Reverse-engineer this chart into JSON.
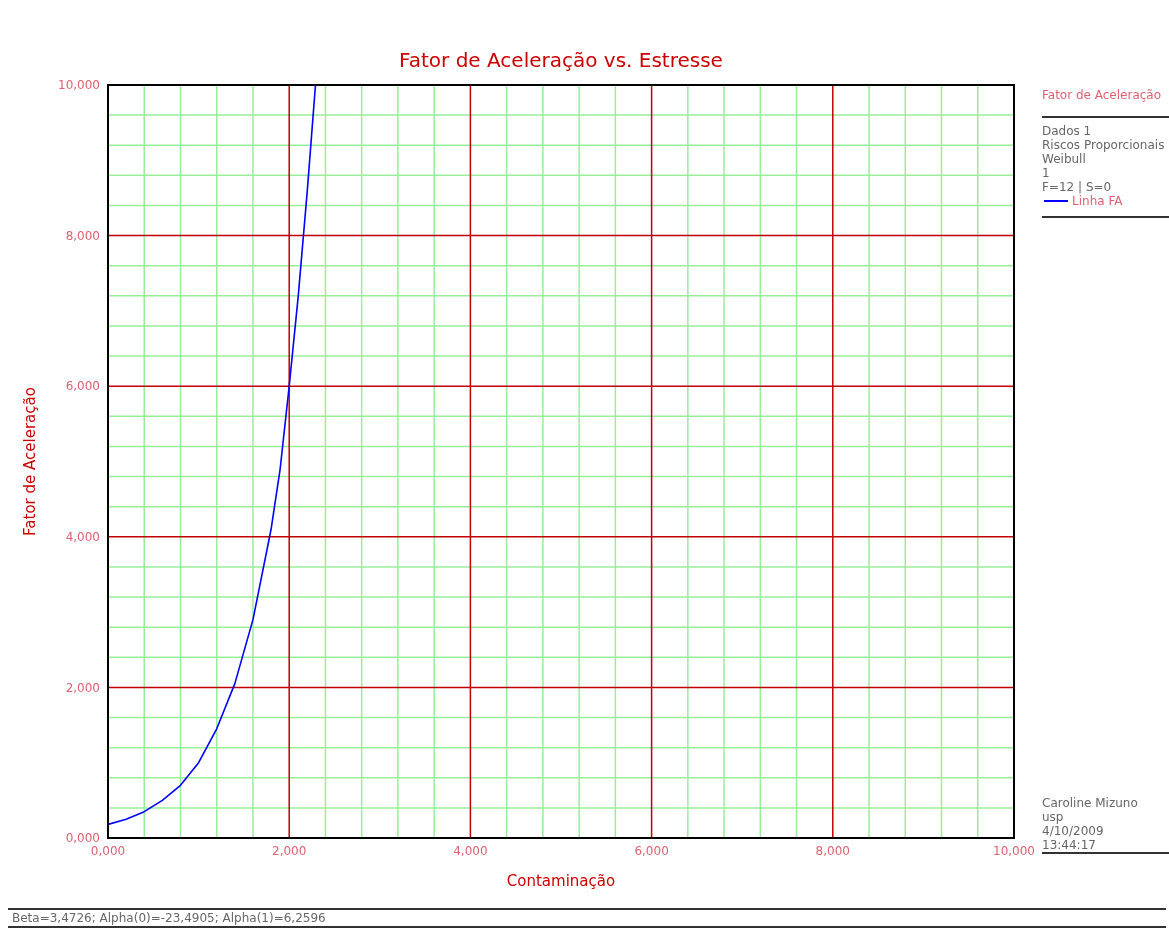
{
  "chart_data": {
    "type": "line",
    "title": "Fator de Aceleração vs. Estresse",
    "xlabel": "Contaminação",
    "ylabel": "Fator de Aceleração",
    "legend_title": "Fator de Aceleração",
    "x": [
      0,
      0.2,
      0.4,
      0.6,
      0.8,
      1.0,
      1.2,
      1.4,
      1.6,
      1.8,
      1.9,
      2.0,
      2.1,
      2.2,
      2.29
    ],
    "series": [
      {
        "name": "Linha FA",
        "color": "#0000ff",
        "values": [
          0.18,
          0.25,
          0.35,
          0.5,
          0.7,
          1.0,
          1.45,
          2.05,
          2.9,
          4.1,
          4.9,
          6.0,
          7.2,
          8.6,
          10
        ]
      }
    ],
    "xlim": [
      0,
      10
    ],
    "ylim": [
      0,
      10
    ],
    "xticks": [
      {
        "value": 0,
        "label": "0,000"
      },
      {
        "value": 0.4,
        "label": null
      },
      {
        "value": 0.8,
        "label": null
      },
      {
        "value": 1.2,
        "label": null
      },
      {
        "value": 1.6,
        "label": null
      },
      {
        "value": 2,
        "label": "2,000"
      },
      {
        "value": 2.4,
        "label": null
      },
      {
        "value": 2.8,
        "label": null
      },
      {
        "value": 3.2,
        "label": null
      },
      {
        "value": 3.6,
        "label": null
      },
      {
        "value": 4,
        "label": "4,000"
      },
      {
        "value": 4.4,
        "label": null
      },
      {
        "value": 4.8,
        "label": null
      },
      {
        "value": 5.2,
        "label": null
      },
      {
        "value": 5.6,
        "label": null
      },
      {
        "value": 6,
        "label": "6,000"
      },
      {
        "value": 6.4,
        "label": null
      },
      {
        "value": 6.8,
        "label": null
      },
      {
        "value": 7.2,
        "label": null
      },
      {
        "value": 7.6,
        "label": null
      },
      {
        "value": 8,
        "label": "8,000"
      },
      {
        "value": 8.4,
        "label": null
      },
      {
        "value": 8.8,
        "label": null
      },
      {
        "value": 9.2,
        "label": null
      },
      {
        "value": 9.6,
        "label": null
      },
      {
        "value": 10,
        "label": "10,000"
      }
    ],
    "yticks": [
      {
        "value": 0,
        "label": "0,000"
      },
      {
        "value": 0.4,
        "label": null
      },
      {
        "value": 0.8,
        "label": null
      },
      {
        "value": 1.2,
        "label": null
      },
      {
        "value": 1.6,
        "label": null
      },
      {
        "value": 2,
        "label": "2,000"
      },
      {
        "value": 2.4,
        "label": null
      },
      {
        "value": 2.8,
        "label": null
      },
      {
        "value": 3.2,
        "label": null
      },
      {
        "value": 3.6,
        "label": null
      },
      {
        "value": 4,
        "label": "4,000"
      },
      {
        "value": 4.4,
        "label": null
      },
      {
        "value": 4.8,
        "label": null
      },
      {
        "value": 5.2,
        "label": null
      },
      {
        "value": 5.6,
        "label": null
      },
      {
        "value": 6,
        "label": "6,000"
      },
      {
        "value": 6.4,
        "label": null
      },
      {
        "value": 6.8,
        "label": null
      },
      {
        "value": 7.2,
        "label": null
      },
      {
        "value": 7.6,
        "label": null
      },
      {
        "value": 8,
        "label": "8,000"
      },
      {
        "value": 8.4,
        "label": null
      },
      {
        "value": 8.8,
        "label": null
      },
      {
        "value": 9.2,
        "label": null
      },
      {
        "value": 9.6,
        "label": null
      },
      {
        "value": 10,
        "label": "10,000"
      }
    ],
    "grid": true,
    "legend": "top right",
    "marker": "none",
    "line_style": "solid",
    "annotations": [
      "Dados 1",
      "Riscos Proporcionais",
      "Weibull",
      "1",
      "F=12 | S=0",
      "Caroline Mizuno",
      "usp",
      "4/10/2009",
      "13:44:17",
      "Beta=3,4726; Alpha(0)=-23,4905; Alpha(1)=6,2596"
    ]
  }
}
